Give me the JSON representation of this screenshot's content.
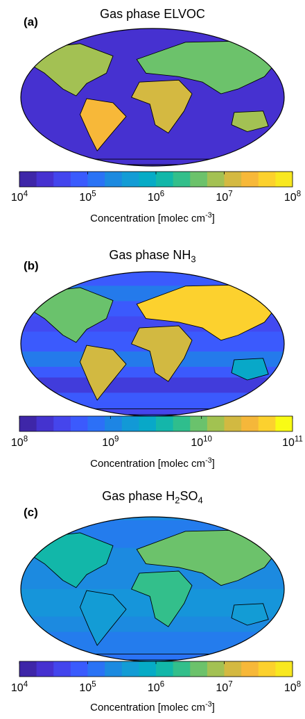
{
  "chart_data": [
    {
      "type": "heatmap",
      "panel_label": "(a)",
      "title_prefix": "Gas phase ",
      "title_species": "ELVOC",
      "title_species_parts": [],
      "colorbar": {
        "scale": "log",
        "range": [
          10000,
          100000000
        ],
        "tick_bases": [
          "10",
          "10",
          "10",
          "10",
          "10"
        ],
        "tick_exponents": [
          "4",
          "5",
          "6",
          "7",
          "8"
        ],
        "label_prefix": "Concentration [molec cm",
        "label_exponent": "-3",
        "label_suffix": "]",
        "colors": [
          "#3e26a8",
          "#4631d0",
          "#4345ed",
          "#3a5bfd",
          "#2a73f5",
          "#1c8ae0",
          "#139cd5",
          "#06abc6",
          "#12b7a9",
          "#33bf8b",
          "#6cc26b",
          "#a3c153",
          "#d4b941",
          "#f7b839",
          "#fcd12d",
          "#f8e820"
        ]
      }
    },
    {
      "type": "heatmap",
      "panel_label": "(b)",
      "title_prefix": "Gas phase ",
      "title_species": "NH",
      "title_species_parts": [
        "3"
      ],
      "colorbar": {
        "scale": "log",
        "range": [
          100000000,
          100000000000
        ],
        "tick_bases": [
          "10",
          "10",
          "10",
          "10"
        ],
        "tick_exponents": [
          "8",
          "9",
          "10",
          "11"
        ],
        "label_prefix": "Concentration [molec cm",
        "label_exponent": "-3",
        "label_suffix": "]",
        "colors": [
          "#3e26a8",
          "#4433cf",
          "#4545ec",
          "#3b5afd",
          "#2c70f7",
          "#1d85e4",
          "#1299d6",
          "#08a8c8",
          "#14b6aa",
          "#2fbe8d",
          "#6ac26c",
          "#a2c251",
          "#d2b941",
          "#f5b73a",
          "#fcd12e",
          "#f9fb15"
        ]
      }
    },
    {
      "type": "heatmap",
      "panel_label": "(c)",
      "title_prefix": "Gas phase ",
      "title_species": "H",
      "title_species_parts": [
        "2",
        "SO",
        "4"
      ],
      "colorbar": {
        "scale": "log",
        "range": [
          10000,
          100000000
        ],
        "tick_bases": [
          "10",
          "10",
          "10",
          "10",
          "10"
        ],
        "tick_exponents": [
          "4",
          "5",
          "6",
          "7",
          "8"
        ],
        "label_prefix": "Concentration [molec cm",
        "label_exponent": "-3",
        "label_suffix": "]",
        "colors": [
          "#3e26a8",
          "#4631d0",
          "#4345ed",
          "#3a5bfd",
          "#2a73f5",
          "#1c8ae0",
          "#139cd5",
          "#06abc6",
          "#12b7a9",
          "#33bf8b",
          "#6cc26b",
          "#a3c153",
          "#d4b941",
          "#f7b839",
          "#fcd12d",
          "#f8e820"
        ]
      }
    }
  ]
}
